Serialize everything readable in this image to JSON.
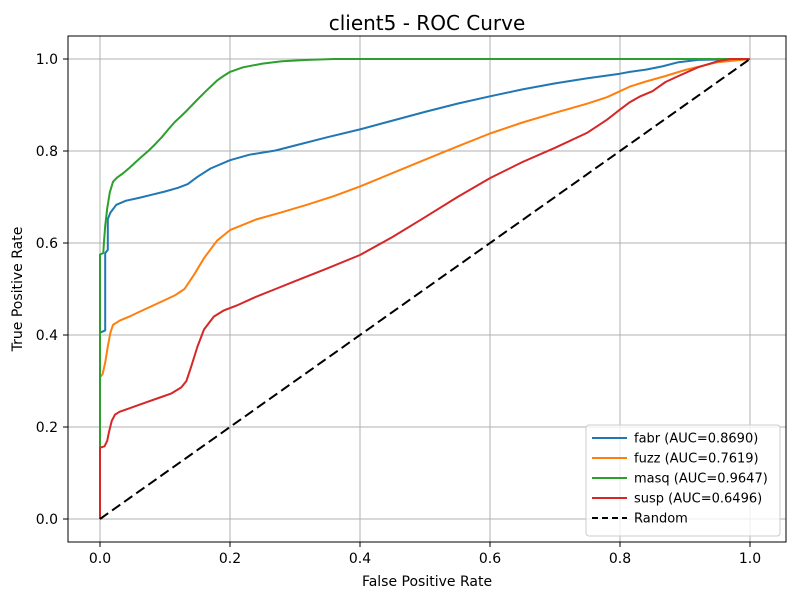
{
  "figure": {
    "background": "#ffffff",
    "grid_color": "#b0b0b0",
    "spine_color": "#000000",
    "text_color": "#000000"
  },
  "chart_data": {
    "type": "line",
    "title": "client5 - ROC Curve",
    "xlabel": "False Positive Rate",
    "ylabel": "True Positive Rate",
    "xlim": [
      -0.05,
      1.05
    ],
    "ylim": [
      -0.05,
      1.05
    ],
    "grid": true,
    "legend_position": "lower right",
    "x_ticks": [
      {
        "value": 0.0,
        "label": "0.0"
      },
      {
        "value": 0.2,
        "label": "0.2"
      },
      {
        "value": 0.4,
        "label": "0.4"
      },
      {
        "value": 0.6,
        "label": "0.6"
      },
      {
        "value": 0.8,
        "label": "0.8"
      },
      {
        "value": 1.0,
        "label": "1.0"
      }
    ],
    "y_ticks": [
      {
        "value": 0.0,
        "label": "0.0"
      },
      {
        "value": 0.2,
        "label": "0.2"
      },
      {
        "value": 0.4,
        "label": "0.4"
      },
      {
        "value": 0.6,
        "label": "0.6"
      },
      {
        "value": 0.8,
        "label": "0.8"
      },
      {
        "value": 1.0,
        "label": "1.0"
      }
    ],
    "series": [
      {
        "name": "fabr",
        "auc": 0.869,
        "legend_label": "fabr (AUC=0.8690)",
        "color": "#1f77b4",
        "style": "solid",
        "points": [
          [
            0,
            0
          ],
          [
            0,
            0.405
          ],
          [
            0.008,
            0.41
          ],
          [
            0.008,
            0.578
          ],
          [
            0.012,
            0.585
          ],
          [
            0.012,
            0.652
          ],
          [
            0.016,
            0.666
          ],
          [
            0.025,
            0.683
          ],
          [
            0.04,
            0.692
          ],
          [
            0.06,
            0.698
          ],
          [
            0.08,
            0.705
          ],
          [
            0.1,
            0.712
          ],
          [
            0.12,
            0.72
          ],
          [
            0.135,
            0.728
          ],
          [
            0.15,
            0.744
          ],
          [
            0.17,
            0.762
          ],
          [
            0.2,
            0.78
          ],
          [
            0.23,
            0.792
          ],
          [
            0.27,
            0.801
          ],
          [
            0.3,
            0.812
          ],
          [
            0.35,
            0.83
          ],
          [
            0.4,
            0.847
          ],
          [
            0.45,
            0.866
          ],
          [
            0.5,
            0.885
          ],
          [
            0.55,
            0.903
          ],
          [
            0.6,
            0.919
          ],
          [
            0.65,
            0.934
          ],
          [
            0.7,
            0.947
          ],
          [
            0.75,
            0.958
          ],
          [
            0.8,
            0.968
          ],
          [
            0.815,
            0.972
          ],
          [
            0.84,
            0.977
          ],
          [
            0.865,
            0.984
          ],
          [
            0.89,
            0.993
          ],
          [
            0.92,
            0.998
          ],
          [
            1,
            1
          ]
        ]
      },
      {
        "name": "fuzz",
        "auc": 0.7619,
        "legend_label": "fuzz (AUC=0.7619)",
        "color": "#ff7f0e",
        "style": "solid",
        "points": [
          [
            0,
            0
          ],
          [
            0,
            0.308
          ],
          [
            0.004,
            0.315
          ],
          [
            0.008,
            0.34
          ],
          [
            0.012,
            0.375
          ],
          [
            0.016,
            0.405
          ],
          [
            0.02,
            0.422
          ],
          [
            0.03,
            0.431
          ],
          [
            0.045,
            0.44
          ],
          [
            0.06,
            0.45
          ],
          [
            0.08,
            0.463
          ],
          [
            0.1,
            0.476
          ],
          [
            0.115,
            0.486
          ],
          [
            0.13,
            0.5
          ],
          [
            0.145,
            0.532
          ],
          [
            0.16,
            0.567
          ],
          [
            0.18,
            0.605
          ],
          [
            0.2,
            0.628
          ],
          [
            0.24,
            0.651
          ],
          [
            0.28,
            0.667
          ],
          [
            0.32,
            0.684
          ],
          [
            0.36,
            0.702
          ],
          [
            0.4,
            0.723
          ],
          [
            0.45,
            0.752
          ],
          [
            0.5,
            0.781
          ],
          [
            0.55,
            0.81
          ],
          [
            0.6,
            0.838
          ],
          [
            0.65,
            0.862
          ],
          [
            0.7,
            0.883
          ],
          [
            0.75,
            0.903
          ],
          [
            0.78,
            0.917
          ],
          [
            0.8,
            0.93
          ],
          [
            0.815,
            0.94
          ],
          [
            0.84,
            0.951
          ],
          [
            0.87,
            0.963
          ],
          [
            0.9,
            0.976
          ],
          [
            0.95,
            0.993
          ],
          [
            1,
            1
          ]
        ]
      },
      {
        "name": "masq",
        "auc": 0.9647,
        "legend_label": "masq (AUC=0.9647)",
        "color": "#2ca02c",
        "style": "solid",
        "points": [
          [
            0,
            0
          ],
          [
            0,
            0.575
          ],
          [
            0.005,
            0.578
          ],
          [
            0.006,
            0.6
          ],
          [
            0.008,
            0.637
          ],
          [
            0.011,
            0.675
          ],
          [
            0.015,
            0.71
          ],
          [
            0.02,
            0.733
          ],
          [
            0.026,
            0.742
          ],
          [
            0.035,
            0.751
          ],
          [
            0.045,
            0.763
          ],
          [
            0.055,
            0.776
          ],
          [
            0.065,
            0.789
          ],
          [
            0.075,
            0.801
          ],
          [
            0.085,
            0.815
          ],
          [
            0.095,
            0.83
          ],
          [
            0.105,
            0.847
          ],
          [
            0.115,
            0.863
          ],
          [
            0.125,
            0.876
          ],
          [
            0.135,
            0.89
          ],
          [
            0.15,
            0.912
          ],
          [
            0.165,
            0.933
          ],
          [
            0.18,
            0.953
          ],
          [
            0.19,
            0.963
          ],
          [
            0.2,
            0.972
          ],
          [
            0.22,
            0.982
          ],
          [
            0.25,
            0.99
          ],
          [
            0.28,
            0.995
          ],
          [
            0.32,
            0.998
          ],
          [
            0.36,
            1
          ],
          [
            1,
            1
          ]
        ]
      },
      {
        "name": "susp",
        "auc": 0.6496,
        "legend_label": "susp (AUC=0.6496)",
        "color": "#d62728",
        "style": "solid",
        "points": [
          [
            0,
            0
          ],
          [
            0,
            0.155
          ],
          [
            0.007,
            0.158
          ],
          [
            0.011,
            0.17
          ],
          [
            0.014,
            0.19
          ],
          [
            0.018,
            0.213
          ],
          [
            0.023,
            0.227
          ],
          [
            0.03,
            0.233
          ],
          [
            0.05,
            0.243
          ],
          [
            0.07,
            0.253
          ],
          [
            0.09,
            0.263
          ],
          [
            0.11,
            0.273
          ],
          [
            0.125,
            0.286
          ],
          [
            0.133,
            0.3
          ],
          [
            0.14,
            0.33
          ],
          [
            0.15,
            0.375
          ],
          [
            0.16,
            0.412
          ],
          [
            0.175,
            0.44
          ],
          [
            0.19,
            0.453
          ],
          [
            0.21,
            0.464
          ],
          [
            0.24,
            0.483
          ],
          [
            0.27,
            0.5
          ],
          [
            0.3,
            0.517
          ],
          [
            0.35,
            0.545
          ],
          [
            0.4,
            0.574
          ],
          [
            0.45,
            0.613
          ],
          [
            0.5,
            0.656
          ],
          [
            0.55,
            0.7
          ],
          [
            0.6,
            0.741
          ],
          [
            0.65,
            0.776
          ],
          [
            0.7,
            0.807
          ],
          [
            0.75,
            0.84
          ],
          [
            0.78,
            0.868
          ],
          [
            0.8,
            0.89
          ],
          [
            0.815,
            0.906
          ],
          [
            0.83,
            0.918
          ],
          [
            0.85,
            0.93
          ],
          [
            0.87,
            0.95
          ],
          [
            0.89,
            0.963
          ],
          [
            0.92,
            0.982
          ],
          [
            0.95,
            0.995
          ],
          [
            0.97,
            1
          ],
          [
            1,
            1
          ]
        ]
      },
      {
        "name": "Random",
        "legend_label": "Random",
        "color": "#000000",
        "style": "dashed",
        "points": [
          [
            0,
            0
          ],
          [
            1,
            1
          ]
        ]
      }
    ]
  }
}
